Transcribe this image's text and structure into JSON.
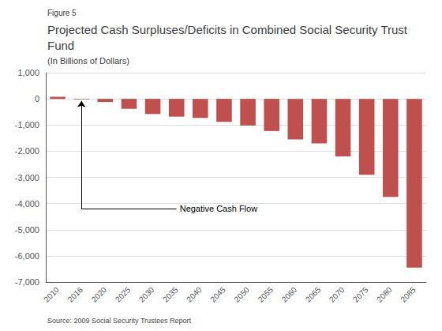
{
  "chart_data": {
    "type": "bar",
    "figure_label": "Figure 5",
    "title": "Projected Cash Surpluses/Deficits in Combined Social Security Trust Fund",
    "subtitle": "(In Billions of Dollars)",
    "source": "Source: 2009 Social Security Trustees Report",
    "categories": [
      "2010",
      "2016",
      "2020",
      "2025",
      "2030",
      "2035",
      "2040",
      "2045",
      "2050",
      "2055",
      "2060",
      "2065",
      "2070",
      "2075",
      "2080",
      "2085"
    ],
    "values": [
      80,
      -20,
      -120,
      -380,
      -580,
      -680,
      -730,
      -880,
      -1020,
      -1230,
      -1550,
      -1700,
      -2200,
      -2900,
      -3750,
      -6450
    ],
    "color": "#c0504d",
    "ylim": [
      -7000,
      1000
    ],
    "yticks": [
      {
        "value": 1000,
        "label": "1,000"
      },
      0,
      {
        "value": -1000,
        "label": "-1,000"
      },
      {
        "value": -2000,
        "label": "-2,000"
      },
      {
        "value": -3000,
        "label": "-3,000"
      },
      {
        "value": -4000,
        "label": "-4,000"
      },
      {
        "value": -5000,
        "label": "-5,000"
      },
      {
        "value": -6000,
        "label": "-6,000"
      },
      {
        "value": -7000,
        "label": "-7,000"
      }
    ],
    "grid": true,
    "annotations": [
      {
        "text": "Negative Cash Flow",
        "x": "2016",
        "y": -80
      }
    ]
  }
}
